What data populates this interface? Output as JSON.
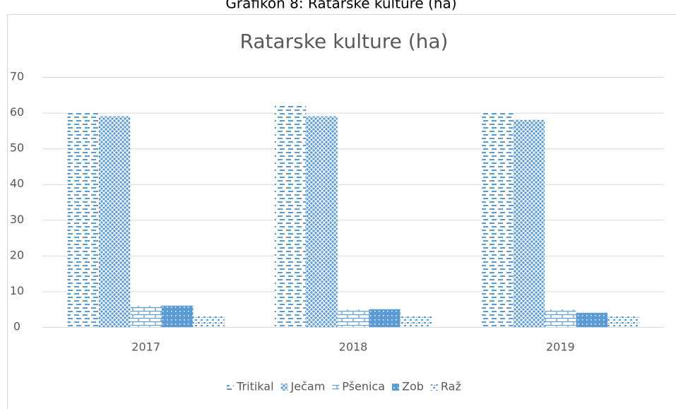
{
  "caption": "Grafikon 8: Ratarske kulture (ha)",
  "chart_data": {
    "type": "bar",
    "title": "Ratarske kulture (ha)",
    "categories": [
      "2017",
      "2018",
      "2019"
    ],
    "series": [
      {
        "name": "Tritikal",
        "color": "#5b9bd5",
        "values": [
          60,
          62,
          60
        ]
      },
      {
        "name": "Ječam",
        "color": "#5b9bd5",
        "values": [
          59,
          59,
          58
        ]
      },
      {
        "name": "Pšenica",
        "color": "#5b9bd5",
        "values": [
          6,
          5,
          5
        ]
      },
      {
        "name": "Zob",
        "color": "#5b9bd5",
        "values": [
          6,
          5,
          4
        ]
      },
      {
        "name": "Raž",
        "color": "#5b9bd5",
        "values": [
          3,
          3,
          3
        ]
      }
    ],
    "ylim": [
      0,
      70
    ],
    "yticks": [
      0,
      10,
      20,
      30,
      40,
      50,
      60,
      70
    ],
    "grid": true,
    "legend": "bottom"
  }
}
